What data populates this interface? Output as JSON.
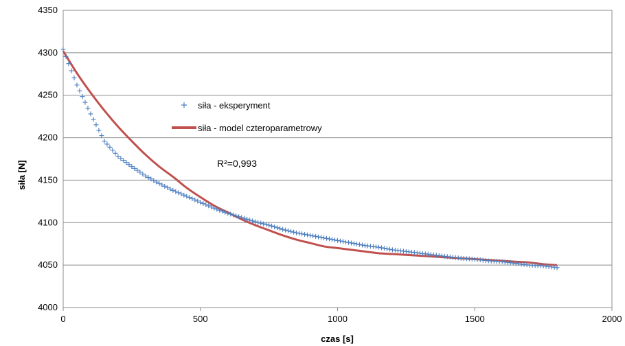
{
  "chart_data": {
    "type": "scatter",
    "title": "",
    "xlabel": "czas [s]",
    "ylabel": "siła [N]",
    "xlim": [
      0,
      2000
    ],
    "ylim": [
      4000,
      4350
    ],
    "xticks": [
      0,
      500,
      1000,
      1500,
      2000
    ],
    "yticks": [
      4000,
      4050,
      4100,
      4150,
      4200,
      4250,
      4300,
      4350
    ],
    "grid": "horizontal",
    "legend_position": "center-left",
    "annotation": "R²=0,993",
    "colors": {
      "experiment": "#4a7dbf",
      "model": "#c0504d",
      "grid": "#8c8c8c"
    },
    "series": [
      {
        "name": "siła - eksperyment",
        "kind": "markers",
        "marker": "plus",
        "x": [
          0,
          50,
          100,
          150,
          200,
          250,
          300,
          350,
          400,
          450,
          500,
          550,
          600,
          650,
          700,
          750,
          800,
          850,
          900,
          950,
          1000,
          1050,
          1100,
          1150,
          1200,
          1250,
          1300,
          1350,
          1400,
          1450,
          1500,
          1550,
          1600,
          1650,
          1700,
          1750,
          1800
        ],
        "y": [
          4304,
          4262,
          4228,
          4196,
          4178,
          4166,
          4155,
          4146,
          4138,
          4131,
          4124,
          4117,
          4111,
          4106,
          4101,
          4097,
          4092,
          4088,
          4085,
          4082,
          4079,
          4076,
          4073,
          4071,
          4068,
          4066,
          4064,
          4062,
          4060,
          4058,
          4057,
          4055,
          4054,
          4052,
          4050,
          4049,
          4047
        ]
      },
      {
        "name": "siła - model czteroparametrowy",
        "kind": "line",
        "x": [
          0,
          50,
          100,
          150,
          200,
          250,
          300,
          350,
          400,
          450,
          500,
          550,
          600,
          650,
          700,
          750,
          800,
          850,
          900,
          950,
          1000,
          1050,
          1100,
          1150,
          1200,
          1250,
          1300,
          1350,
          1400,
          1450,
          1500,
          1550,
          1600,
          1650,
          1700,
          1750,
          1800
        ],
        "y": [
          4302,
          4276,
          4253,
          4232,
          4213,
          4196,
          4180,
          4166,
          4154,
          4141,
          4130,
          4120,
          4112,
          4104,
          4097,
          4091,
          4085,
          4080,
          4076,
          4072,
          4070,
          4068,
          4066,
          4064,
          4063,
          4062,
          4061,
          4060,
          4059,
          4058,
          4057,
          4056,
          4055,
          4054,
          4053,
          4051,
          4050
        ]
      }
    ]
  }
}
